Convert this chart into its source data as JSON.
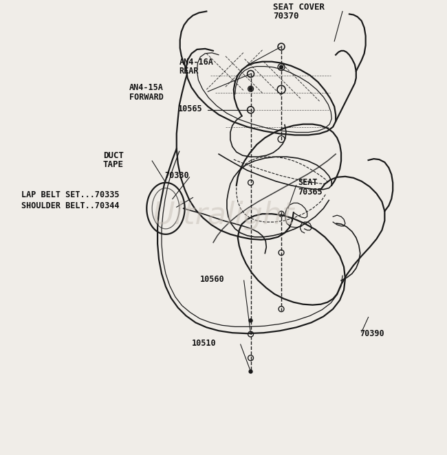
{
  "bg_color": "#f0ede8",
  "line_color": "#1a1a1a",
  "watermark_color": "#c8c0b8",
  "watermark_text": "Ultralight",
  "labels": {
    "seat_cover_line1": "SEAT COVER",
    "seat_cover_line2": "70370",
    "an4_16a_line1": "AN4-16A",
    "an4_16a_line2": "REAR",
    "an4_15a_line1": "AN4-15A",
    "an4_15a_line2": "FORWARD",
    "l10565": "10565",
    "duct_tape_line1": "DUCT",
    "duct_tape_line2": "TAPE",
    "l70330": "70330",
    "lap_belt": "LAP BELT SET...70335",
    "shoulder_belt": "SHOULDER BELT..70344",
    "seat_line1": "SEAT",
    "seat_line2": "70365",
    "l10560": "10560",
    "l10510": "10510",
    "l70390": "70390"
  },
  "font_size": 8.5
}
